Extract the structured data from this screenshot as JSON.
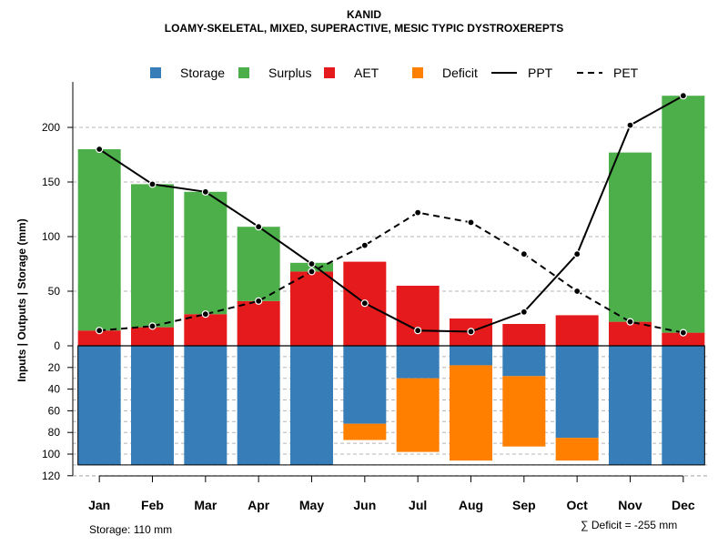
{
  "chart_data": {
    "type": "bar",
    "title": "KANID",
    "subtitle": "LOAMY-SKELETAL, MIXED, SUPERACTIVE, MESIC TYPIC DYSTROXEREPTS",
    "ylabel": "Inputs | Outputs | Storage    (mm)",
    "categories": [
      "Jan",
      "Feb",
      "Mar",
      "Apr",
      "May",
      "Jun",
      "Jul",
      "Aug",
      "Sep",
      "Oct",
      "Nov",
      "Dec"
    ],
    "upper_ylim": [
      0,
      230
    ],
    "upper_ticks": [
      0,
      50,
      100,
      150,
      200
    ],
    "lower_ylim": [
      0,
      120
    ],
    "lower_ticks": [
      20,
      40,
      60,
      80,
      100,
      120
    ],
    "series": [
      {
        "name": "AET",
        "color": "#e41a1c",
        "values": [
          14,
          17,
          29,
          41,
          68,
          77,
          55,
          25,
          20,
          28,
          22,
          12
        ]
      },
      {
        "name": "Surplus",
        "color": "#4daf4a",
        "values": [
          166,
          131,
          112,
          68,
          8,
          0,
          0,
          0,
          0,
          0,
          155,
          217
        ]
      },
      {
        "name": "Storage",
        "color": "#377eb8",
        "values": [
          110,
          110,
          110,
          110,
          110,
          72,
          30,
          18,
          28,
          85,
          110,
          110
        ]
      },
      {
        "name": "Deficit",
        "color": "#ff7f00",
        "values": [
          0,
          0,
          0,
          0,
          0,
          15,
          68,
          88,
          65,
          21,
          0,
          0
        ]
      },
      {
        "name": "PPT",
        "color": "#000000",
        "style": "solid",
        "values": [
          180,
          148,
          141,
          109,
          75,
          39,
          14,
          13,
          31,
          84,
          202,
          229
        ]
      },
      {
        "name": "PET",
        "color": "#000000",
        "style": "dashed",
        "values": [
          14,
          18,
          29,
          41,
          68,
          92,
          122,
          113,
          84,
          50,
          22,
          12
        ]
      }
    ],
    "legend": [
      {
        "name": "Storage",
        "kind": "box",
        "color": "#377eb8"
      },
      {
        "name": "Surplus",
        "kind": "box",
        "color": "#4daf4a"
      },
      {
        "name": "AET",
        "kind": "box",
        "color": "#e41a1c"
      },
      {
        "name": "Deficit",
        "kind": "box",
        "color": "#ff7f00"
      },
      {
        "name": "PPT",
        "kind": "solid"
      },
      {
        "name": "PET",
        "kind": "dashed"
      }
    ],
    "legend_position": "top"
  },
  "notes": {
    "storage": "Storage: 110 mm",
    "deficit": "∑ Deficit = -255 mm"
  }
}
